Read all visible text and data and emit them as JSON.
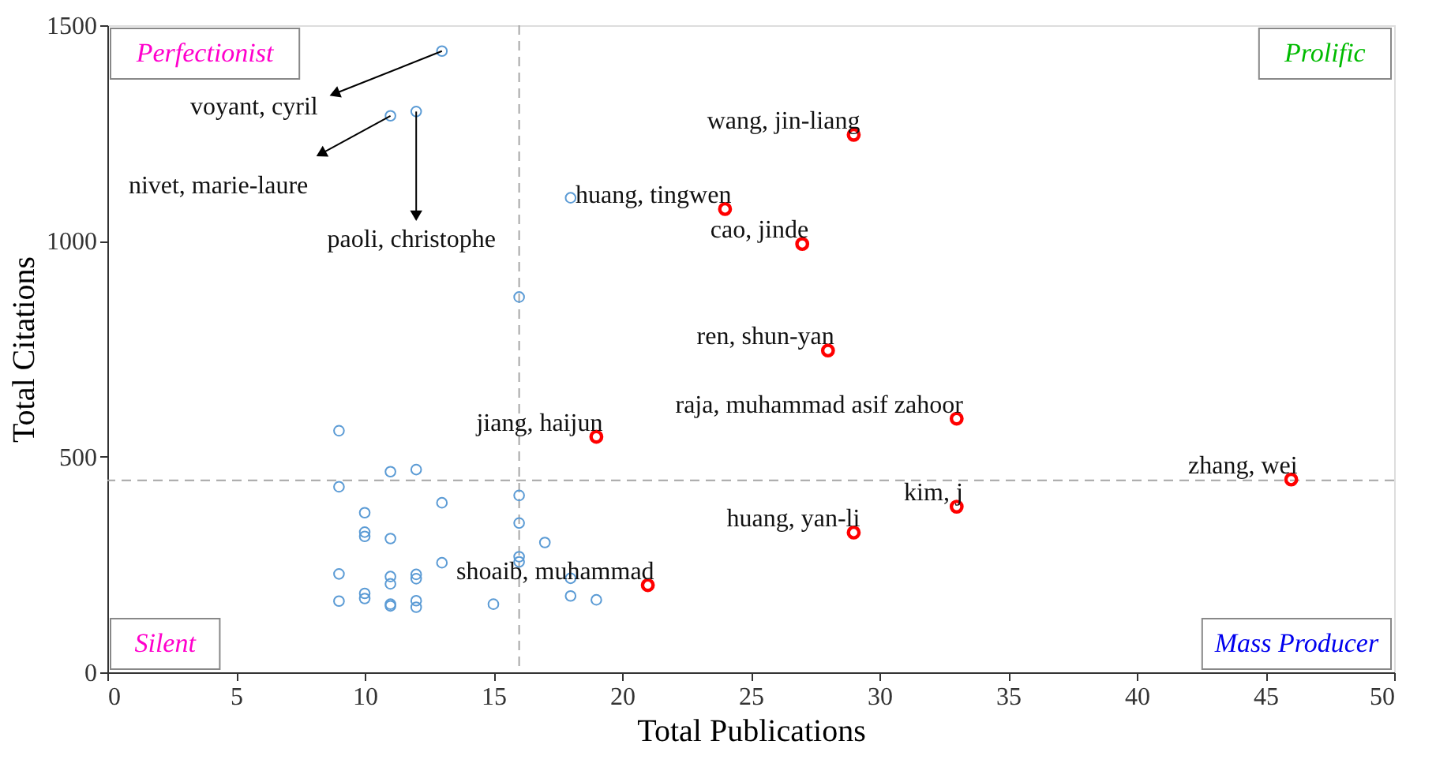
{
  "chart_data": {
    "type": "scatter",
    "xlabel": "Total Publications",
    "ylabel": "Total Citations",
    "xlim": [
      0,
      50
    ],
    "xticks": [
      0,
      5,
      10,
      15,
      20,
      25,
      30,
      35,
      40,
      45,
      50
    ],
    "ylim": [
      0,
      1500
    ],
    "yticks": [
      0,
      500,
      1000,
      1500
    ],
    "grid": false,
    "marker": "circle",
    "series": [
      {
        "color": "#5b9bd5",
        "x": [
          13,
          11,
          12,
          16,
          18,
          9,
          9,
          10,
          10,
          10,
          11,
          12,
          13,
          11,
          16,
          16,
          16,
          16,
          17,
          9,
          11,
          11,
          12,
          12,
          13,
          18,
          18,
          19,
          9,
          10,
          10,
          11,
          11,
          12,
          12,
          15
        ],
        "values": [
          1440,
          1290,
          1300,
          870,
          1100,
          560,
          430,
          370,
          325,
          315,
          465,
          470,
          393,
          310,
          410,
          346,
          268,
          256,
          301,
          228,
          222,
          205,
          227,
          217,
          254,
          218,
          177,
          168,
          165,
          183,
          171,
          158,
          154,
          166,
          151,
          158
        ]
      },
      {
        "color": "#ff0000",
        "x": [
          29,
          24,
          27,
          28,
          33,
          19,
          46,
          33,
          29,
          21
        ],
        "values": [
          1246,
          1074,
          993,
          746,
          588,
          546,
          447,
          384,
          324,
          202
        ]
      }
    ],
    "ref_lines": [
      {
        "axis": "x",
        "value": 16,
        "color": "#a6a6a6",
        "line_style": "dashed"
      },
      {
        "axis": "y",
        "value": 445,
        "color": "#a6a6a6",
        "line_style": "dashed"
      }
    ],
    "annotations": [
      "Perfectionist",
      "Prolific",
      "Silent",
      "Mass Producer",
      {
        "text": "voyant, cyril",
        "x": 13,
        "y": 1440
      },
      {
        "text": "nivet, marie-laure",
        "x": 11,
        "y": 1290
      },
      {
        "text": "paoli, christophe",
        "x": 12,
        "y": 1300
      },
      {
        "text": "wang, jin-liang",
        "x": 29,
        "y": 1246
      },
      {
        "text": "huang, tingwen",
        "x": 24,
        "y": 1074
      },
      {
        "text": "cao, jinde",
        "x": 27,
        "y": 993
      },
      {
        "text": "ren, shun-yan",
        "x": 28,
        "y": 746
      },
      {
        "text": "raja, muhammad asif zahoor",
        "x": 33,
        "y": 588
      },
      {
        "text": "jiang, haijun",
        "x": 19,
        "y": 546
      },
      {
        "text": "zhang, wei",
        "x": 46,
        "y": 447
      },
      {
        "text": "kim, j",
        "x": 33,
        "y": 384
      },
      {
        "text": "huang, yan-li",
        "x": 29,
        "y": 324
      },
      {
        "text": "shoaib, muhammad",
        "x": 21,
        "y": 202
      }
    ]
  }
}
